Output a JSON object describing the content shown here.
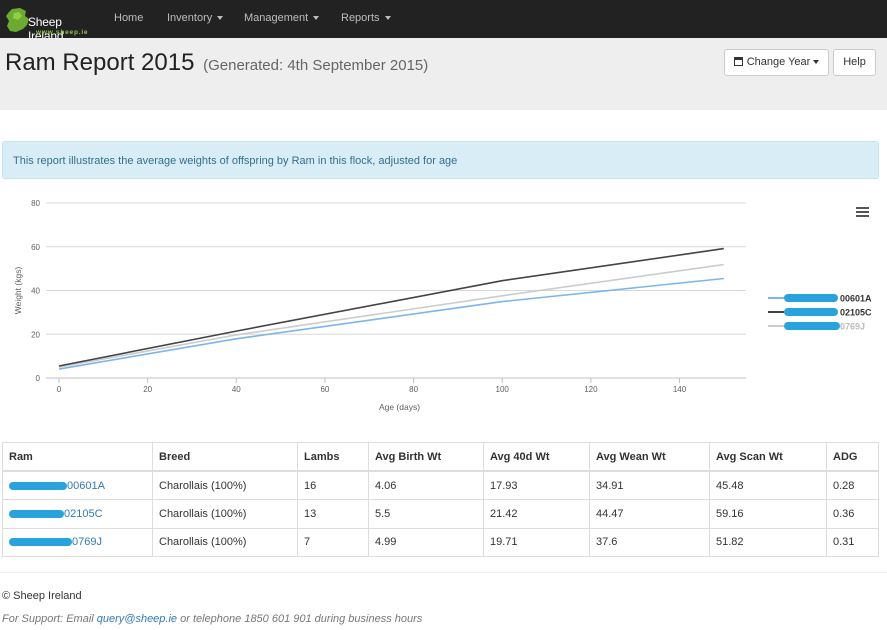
{
  "nav": {
    "brand_name": "Sheep Ireland",
    "brand_url": "www.sheep.ie",
    "items": [
      {
        "label": "Home"
      },
      {
        "label": "Inventory"
      },
      {
        "label": "Management"
      },
      {
        "label": "Reports"
      }
    ]
  },
  "header": {
    "title": "Ram Report 2015",
    "subtitle": "(Generated: 4th September 2015)",
    "change_year_label": "Change Year",
    "help_label": "Help"
  },
  "alert": {
    "text": "This report illustrates the average weights of offspring by Ram in this flock, adjusted for age"
  },
  "chart_data": {
    "type": "line",
    "xlabel": "Age (days)",
    "ylabel": "Weight (kgs)",
    "xlim": [
      0,
      155
    ],
    "ylim": [
      0,
      80
    ],
    "x_ticks": [
      0,
      20,
      40,
      60,
      80,
      100,
      120,
      140
    ],
    "y_ticks": [
      0,
      20,
      40,
      60,
      80
    ],
    "grid": "horizontal",
    "legend_position": "right",
    "series": [
      {
        "name": "00601A",
        "color": "#7cb5ec",
        "points": [
          [
            0,
            4.06
          ],
          [
            40,
            17.93
          ],
          [
            100,
            34.91
          ],
          [
            150,
            45.48
          ]
        ]
      },
      {
        "name": "02105C",
        "color": "#434348",
        "points": [
          [
            0,
            5.5
          ],
          [
            40,
            21.42
          ],
          [
            100,
            44.47
          ],
          [
            150,
            59.16
          ]
        ]
      },
      {
        "name": "0769J",
        "color": "#cccccc",
        "points": [
          [
            0,
            4.99
          ],
          [
            40,
            19.71
          ],
          [
            100,
            37.6
          ],
          [
            150,
            51.82
          ]
        ]
      }
    ]
  },
  "table": {
    "headers": [
      "Ram",
      "Breed",
      "Lambs",
      "Avg Birth Wt",
      "Avg 40d Wt",
      "Avg Wean Wt",
      "Avg Scan Wt",
      "ADG"
    ],
    "rows": [
      {
        "ram": "00601A",
        "breed": "Charollais (100%)",
        "lambs": "16",
        "birth": "4.06",
        "d40": "17.93",
        "wean": "34.91",
        "scan": "45.48",
        "adg": "0.28"
      },
      {
        "ram": "02105C",
        "breed": "Charollais (100%)",
        "lambs": "13",
        "birth": "5.5",
        "d40": "21.42",
        "wean": "44.47",
        "scan": "59.16",
        "adg": "0.36"
      },
      {
        "ram": "0769J",
        "breed": "Charollais (100%)",
        "lambs": "7",
        "birth": "4.99",
        "d40": "19.71",
        "wean": "37.6",
        "scan": "51.82",
        "adg": "0.31"
      }
    ]
  },
  "footer": {
    "copyright": "© Sheep Ireland",
    "support_prefix": "For Support: Email",
    "support_email": "query@sheep.ie",
    "support_suffix": "or telephone 1850 601 901 during business hours"
  }
}
